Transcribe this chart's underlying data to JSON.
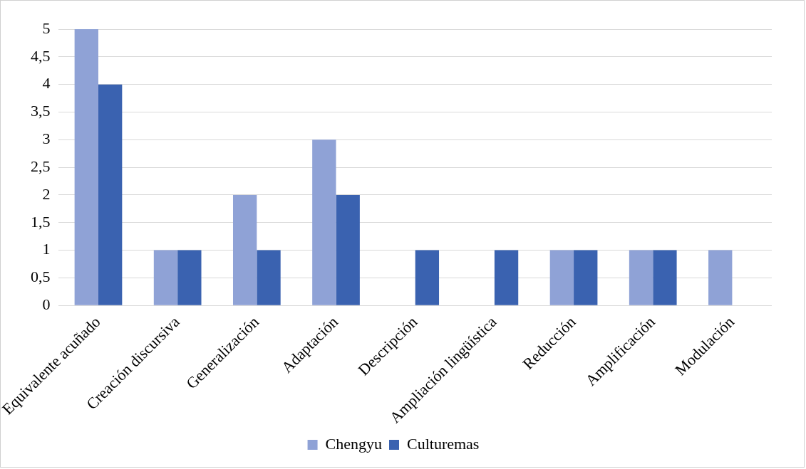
{
  "chart_data": {
    "type": "bar",
    "categories": [
      "Equivalente acuñado",
      "Creación discursiva",
      "Generalización",
      "Adaptación",
      "Descripción",
      "Ampliación lingüística",
      "Reducción",
      "Amplificación",
      "Modulación"
    ],
    "series": [
      {
        "name": "Chengyu",
        "color": "#8fa2d6",
        "values": [
          5,
          1,
          2,
          3,
          0,
          0,
          1,
          1,
          1
        ]
      },
      {
        "name": "Culturemas",
        "color": "#3a62b0",
        "values": [
          4,
          1,
          1,
          2,
          1,
          1,
          1,
          1,
          0
        ]
      }
    ],
    "ylim": [
      0,
      5
    ],
    "yticks": [
      0,
      {
        "value": 0.5,
        "label": "0,5"
      },
      1,
      {
        "value": 1.5,
        "label": "1,5"
      },
      2,
      {
        "value": 2.5,
        "label": "2,5"
      },
      3,
      {
        "value": 3.5,
        "label": "3,5"
      },
      4,
      {
        "value": 4.5,
        "label": "4,5"
      },
      5
    ],
    "grid": "y",
    "legend": "bottom"
  }
}
